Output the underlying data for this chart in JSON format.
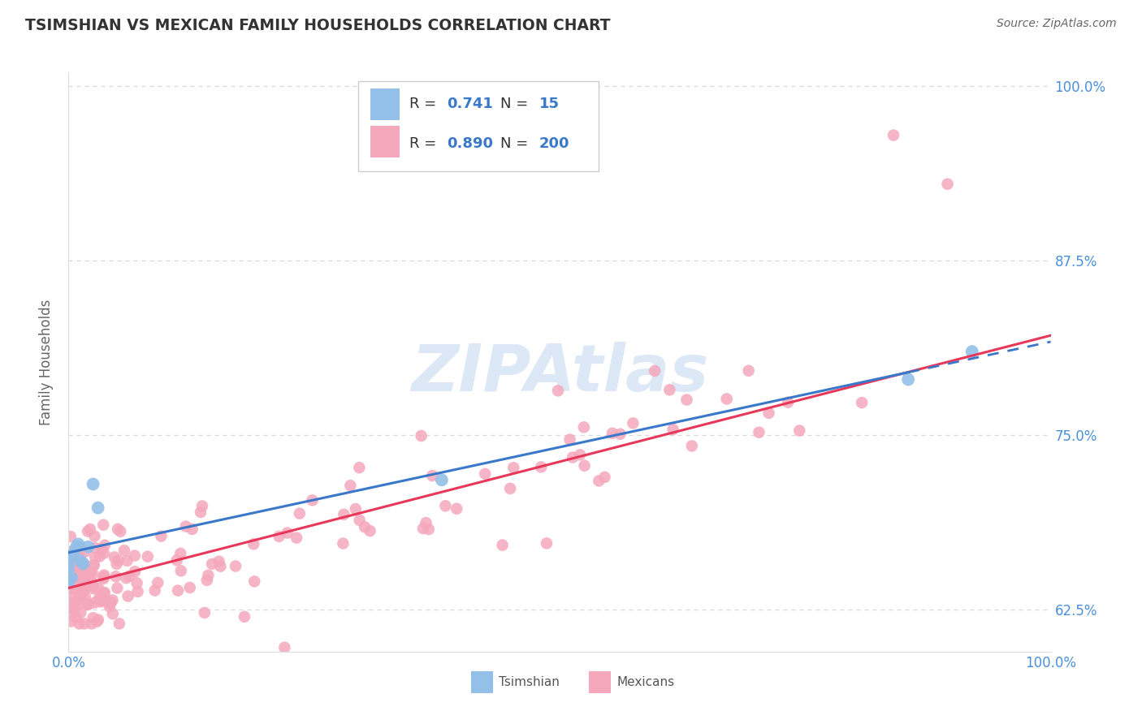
{
  "title": "TSIMSHIAN VS MEXICAN FAMILY HOUSEHOLDS CORRELATION CHART",
  "source": "Source: ZipAtlas.com",
  "ylabel": "Family Households",
  "watermark": "ZIPAtlas",
  "legend_tsimshian_R": "0.741",
  "legend_tsimshian_N": "15",
  "legend_mexicans_R": "0.890",
  "legend_mexicans_N": "200",
  "xlim": [
    0.0,
    1.0
  ],
  "ylim": [
    0.595,
    1.01
  ],
  "yticks": [
    0.625,
    0.75,
    0.875,
    1.0
  ],
  "ytick_labels": [
    "62.5%",
    "75.0%",
    "87.5%",
    "100.0%"
  ],
  "tsimshian_color": "#92c0e8",
  "mexicans_color": "#f5a8bc",
  "tsimshian_line_color": "#3a78c9",
  "mexicans_line_color": "#e8385a",
  "background_color": "#ffffff",
  "grid_color": "#d8d8d8",
  "title_color": "#333333",
  "axis_label_color": "#666666",
  "tick_color": "#4a90d9",
  "source_color": "#666666",
  "watermark_color": "#dce8f5",
  "legend_border_color": "#cccccc",
  "legend_text_color": "#333333",
  "legend_value_color": "#3a78c9"
}
